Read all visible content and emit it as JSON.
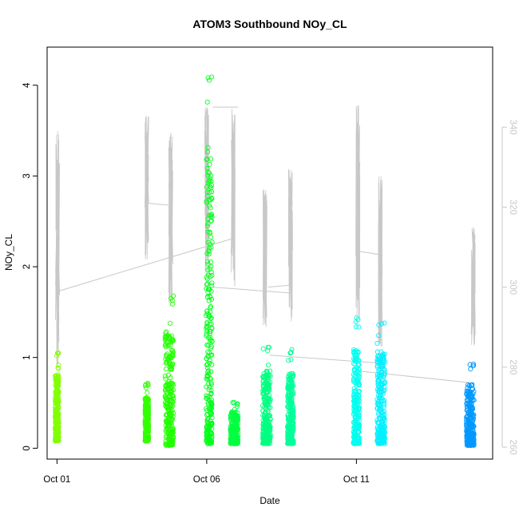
{
  "chart_data": {
    "type": "scatter",
    "title": "ATOM3 Southbound NOy_CL",
    "xlabel": "Date",
    "ylabel": "NOy_CL",
    "x_tick_labels": [
      "Oct 01",
      "Oct 06",
      "Oct 11"
    ],
    "x_tick_days": [
      1,
      6,
      11
    ],
    "xlim_days": [
      0.67,
      15.55
    ],
    "ylim": [
      -0.12,
      4.42
    ],
    "y_ticks": [
      0,
      1,
      2,
      3,
      4
    ],
    "y2_ticks": [
      260,
      280,
      300,
      320,
      340
    ],
    "y2lim": [
      257,
      360
    ],
    "grid": false,
    "series": [
      {
        "kind": "scatter",
        "marker": "open-circle",
        "flights": [
          {
            "day": 1.0,
            "width": 0.12,
            "ymin": 0.08,
            "ymax": 1.06,
            "color": "#80ff00"
          },
          {
            "day": 4.0,
            "width": 0.12,
            "ymin": 0.08,
            "ymax": 0.72,
            "color": "#33ff00"
          },
          {
            "day": 4.75,
            "width": 0.28,
            "ymin": 0.03,
            "ymax": 1.7,
            "color": "#22ff00"
          },
          {
            "day": 6.08,
            "width": 0.2,
            "ymin": 0.05,
            "ymax": 4.25,
            "color": "#00ff18"
          },
          {
            "day": 6.92,
            "width": 0.26,
            "ymin": 0.05,
            "ymax": 0.52,
            "color": "#00ff40"
          },
          {
            "day": 8.0,
            "width": 0.26,
            "ymin": 0.05,
            "ymax": 1.12,
            "color": "#00ff80"
          },
          {
            "day": 8.8,
            "width": 0.2,
            "ymin": 0.05,
            "ymax": 1.1,
            "color": "#00ff99"
          },
          {
            "day": 11.0,
            "width": 0.2,
            "ymin": 0.05,
            "ymax": 1.44,
            "color": "#00ffee"
          },
          {
            "day": 11.82,
            "width": 0.26,
            "ymin": 0.05,
            "ymax": 1.42,
            "color": "#00f0ff"
          },
          {
            "day": 14.8,
            "width": 0.26,
            "ymin": 0.03,
            "ymax": 0.94,
            "color": "#0099ff"
          }
        ]
      },
      {
        "kind": "line",
        "axis": "right",
        "color": "#c8c8c8",
        "spikes": [
          {
            "day": 1.02,
            "ymin": 280,
            "ymax": 341
          },
          {
            "day": 4.0,
            "ymin": 305,
            "ymax": 343
          },
          {
            "day": 4.8,
            "ymin": 295,
            "ymax": 339
          },
          {
            "day": 6.0,
            "ymin": 300,
            "ymax": 345
          },
          {
            "day": 6.88,
            "ymin": 300,
            "ymax": 345
          },
          {
            "day": 7.95,
            "ymin": 290,
            "ymax": 325
          },
          {
            "day": 8.8,
            "ymin": 291,
            "ymax": 330
          },
          {
            "day": 11.05,
            "ymin": 290,
            "ymax": 347
          },
          {
            "day": 11.8,
            "ymin": 285,
            "ymax": 328
          },
          {
            "day": 14.9,
            "ymin": 285,
            "ymax": 315
          }
        ],
        "connectors": [
          {
            "x": [
              1.05,
              6.8
            ],
            "y": [
              299,
              312
            ]
          },
          {
            "x": [
              4.0,
              4.72
            ],
            "y": [
              321,
              320.5
            ]
          },
          {
            "x": [
              6.2,
              7.05
            ],
            "y": [
              345,
              345
            ]
          },
          {
            "x": [
              6.2,
              8.85
            ],
            "y": [
              300,
              298.5
            ]
          },
          {
            "x": [
              8.05,
              8.78
            ],
            "y": [
              300,
              300.5
            ]
          },
          {
            "x": [
              8.1,
              11.75
            ],
            "y": [
              283,
              281
            ]
          },
          {
            "x": [
              11.05,
              11.88
            ],
            "y": [
              309,
              308
            ]
          },
          {
            "x": [
              11.1,
              14.95
            ],
            "y": [
              279,
              276
            ]
          }
        ]
      }
    ]
  }
}
